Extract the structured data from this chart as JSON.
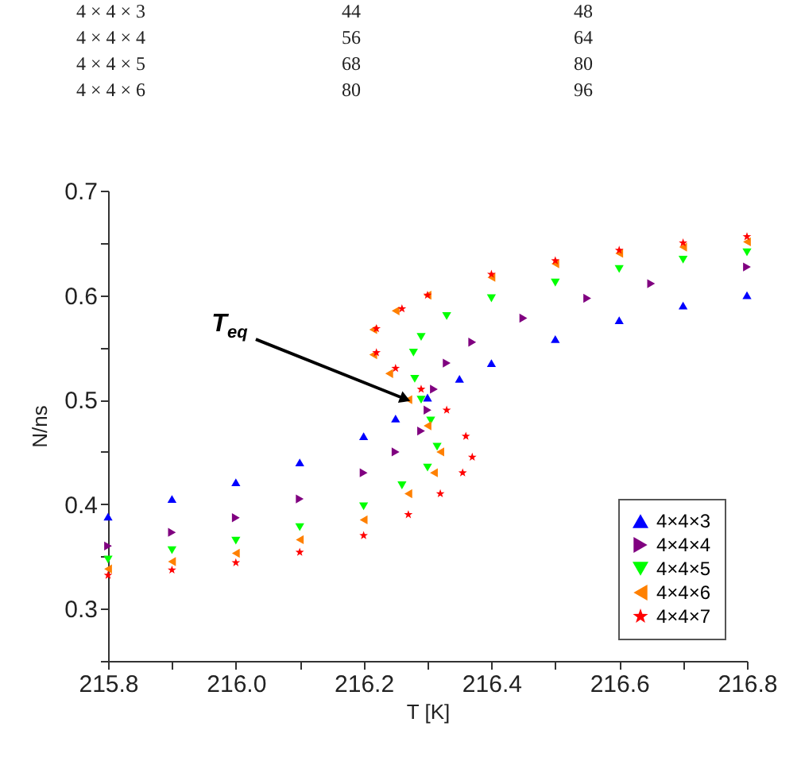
{
  "chart_data": {
    "type": "scatter",
    "xlabel": "T [K]",
    "ylabel": "N/ns",
    "xlim": [
      215.8,
      216.8
    ],
    "ylim": [
      0.25,
      0.7
    ],
    "xticks": [
      215.8,
      {
        "value": 215.9,
        "label": null
      },
      "216.0",
      {
        "value": 216.1,
        "label": null
      },
      216.2,
      {
        "value": 216.3,
        "label": null
      },
      216.4,
      {
        "value": 216.5,
        "label": null
      },
      216.6,
      {
        "value": 216.7,
        "label": null
      },
      216.8
    ],
    "yticks": [
      {
        "value": 0.25,
        "label": null
      },
      0.3,
      {
        "value": 0.35,
        "label": null
      },
      0.4,
      {
        "value": 0.45,
        "label": null
      },
      0.5,
      {
        "value": 0.55,
        "label": null
      },
      0.6,
      {
        "value": 0.65,
        "label": null
      },
      0.7
    ],
    "grid": false,
    "legend": "bottom right",
    "series": [
      {
        "name": "4×4×3",
        "color": "#0000ff",
        "marker": "triangle-up",
        "x": [
          215.8,
          215.9,
          216.0,
          216.1,
          216.2,
          216.25,
          216.3,
          216.35,
          216.4,
          216.5,
          216.6,
          216.7,
          216.8
        ],
        "values": [
          0.388,
          0.405,
          0.421,
          0.44,
          0.465,
          0.482,
          0.502,
          0.52,
          0.535,
          0.558,
          0.576,
          0.59,
          0.6
        ]
      },
      {
        "name": "4×4×4",
        "color": "#800080",
        "marker": "triangle-right",
        "x": [
          215.8,
          215.9,
          216.0,
          216.1,
          216.2,
          216.25,
          216.29,
          216.3,
          216.31,
          216.33,
          216.37,
          216.45,
          216.55,
          216.65,
          216.8
        ],
        "values": [
          0.36,
          0.373,
          0.387,
          0.405,
          0.43,
          0.45,
          0.47,
          0.49,
          0.51,
          0.535,
          0.555,
          0.578,
          0.597,
          0.611,
          0.627
        ]
      },
      {
        "name": "4×4×5",
        "color": "#00ff00",
        "marker": "triangle-down",
        "x": [
          215.8,
          215.9,
          216.0,
          216.1,
          216.2,
          216.26,
          216.3,
          216.315,
          216.305,
          216.29,
          216.28,
          216.278,
          216.29,
          216.33,
          216.4,
          216.5,
          216.6,
          216.7,
          216.8
        ],
        "values": [
          0.347,
          0.356,
          0.365,
          0.378,
          0.398,
          0.418,
          0.435,
          0.455,
          0.48,
          0.5,
          0.52,
          0.545,
          0.56,
          0.58,
          0.597,
          0.612,
          0.625,
          0.634,
          0.641
        ]
      },
      {
        "name": "4×4×6",
        "color": "#ff8000",
        "marker": "triangle-left",
        "x": [
          215.8,
          215.9,
          216.0,
          216.1,
          216.2,
          216.27,
          216.31,
          216.32,
          216.3,
          216.27,
          216.24,
          216.215,
          216.215,
          216.25,
          216.3,
          216.4,
          216.5,
          216.6,
          216.7,
          216.8
        ],
        "values": [
          0.338,
          0.345,
          0.353,
          0.366,
          0.385,
          0.41,
          0.43,
          0.45,
          0.475,
          0.5,
          0.525,
          0.543,
          0.567,
          0.585,
          0.6,
          0.617,
          0.63,
          0.64,
          0.646,
          0.651
        ]
      },
      {
        "name": "4×4×7",
        "color": "#ff0000",
        "marker": "star",
        "x": [
          215.8,
          215.9,
          216.0,
          216.1,
          216.2,
          216.27,
          216.32,
          216.355,
          216.37,
          216.36,
          216.33,
          216.29,
          216.25,
          216.22,
          216.22,
          216.26,
          216.3,
          216.4,
          216.5,
          216.6,
          216.7,
          216.8
        ],
        "values": [
          0.332,
          0.337,
          0.344,
          0.354,
          0.37,
          0.39,
          0.41,
          0.43,
          0.445,
          0.465,
          0.49,
          0.51,
          0.53,
          0.545,
          0.568,
          0.587,
          0.6,
          0.62,
          0.633,
          0.643,
          0.65,
          0.656
        ]
      }
    ],
    "annotations": [
      {
        "text": "T$_{eq}$",
        "x": 216.28,
        "y": 0.497
      },
      "4 × 4 × 3",
      "44",
      "48",
      "4 × 4 × 4",
      "56",
      "64",
      "4 × 4 × 5",
      "68",
      "80",
      "4 × 4 × 6",
      "80",
      "96"
    ]
  }
}
